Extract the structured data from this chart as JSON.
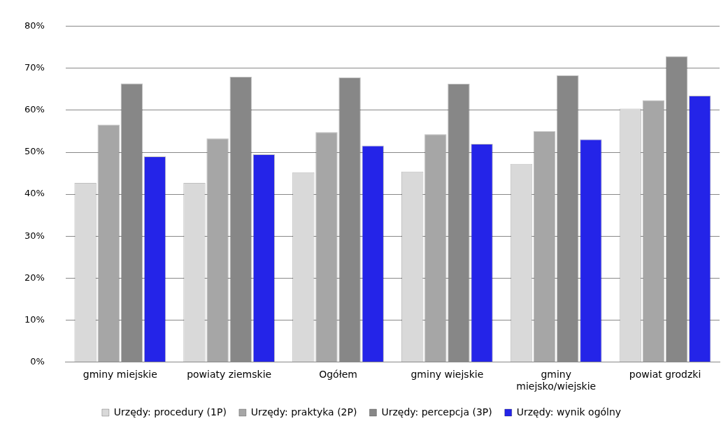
{
  "chart_data": {
    "type": "bar",
    "categories": [
      "gminy miejskie",
      "powiaty ziemskie",
      "Ogółem",
      "gminy wiejskie",
      "gminy miejsko/wiejskie",
      "powiat grodzki"
    ],
    "series": [
      {
        "name": "Urzędy: procedury (1P)",
        "color": "#d9d9d9",
        "values": [
          42.7,
          42.7,
          45.2,
          45.4,
          47.2,
          60.4
        ]
      },
      {
        "name": "Urzędy: praktyka (2P)",
        "color": "#a6a6a6",
        "values": [
          56.6,
          53.3,
          54.8,
          54.3,
          55.0,
          62.4
        ]
      },
      {
        "name": "Urzędy: percepcja (3P)",
        "color": "#878787",
        "values": [
          66.4,
          68.0,
          67.8,
          66.3,
          68.3,
          72.9
        ]
      },
      {
        "name": "Urzędy: wynik ogólny",
        "color": "#2424e8",
        "values": [
          49.0,
          49.5,
          51.6,
          52.0,
          53.1,
          63.5
        ]
      }
    ],
    "ylim": [
      0,
      80
    ],
    "yticks": [
      {
        "value": 0,
        "label": "0%"
      },
      {
        "value": 10,
        "label": "10%"
      },
      {
        "value": 20,
        "label": "20%"
      },
      {
        "value": 30,
        "label": "30%"
      },
      {
        "value": 40,
        "label": "40%"
      },
      {
        "value": 50,
        "label": "50%"
      },
      {
        "value": 60,
        "label": "60%"
      },
      {
        "value": 70,
        "label": "70%"
      },
      {
        "value": 80,
        "label": "80%"
      }
    ],
    "grid": "y",
    "legend": "bottom"
  }
}
